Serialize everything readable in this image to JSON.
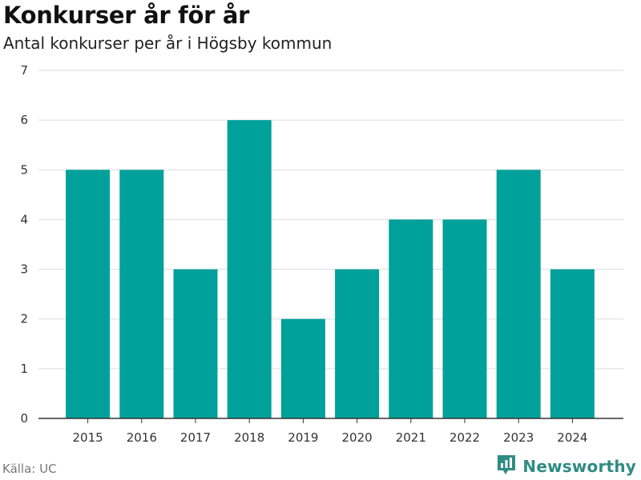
{
  "header": {
    "title": "Konkurser år för år",
    "subtitle": "Antal konkurser per år i Högsby kommun"
  },
  "footer": {
    "source": "Källa: UC",
    "brand": "Newsworthy",
    "brand_icon": "bar-chart-logo-icon"
  },
  "colors": {
    "bar": "#00a19a",
    "grid": "#dddddd",
    "axis": "#333333",
    "brand": "#2f8c84"
  },
  "chart_data": {
    "type": "bar",
    "title": "Konkurser år för år",
    "subtitle": "Antal konkurser per år i Högsby kommun",
    "xlabel": "",
    "ylabel": "",
    "categories": [
      "2015",
      "2016",
      "2017",
      "2018",
      "2019",
      "2020",
      "2021",
      "2022",
      "2023",
      "2024"
    ],
    "values": [
      5,
      5,
      3,
      6,
      2,
      3,
      4,
      4,
      5,
      3
    ],
    "ylim": [
      0,
      7
    ],
    "yticks": [
      "0",
      "1",
      "2",
      "3",
      "4",
      "5",
      "6",
      "7"
    ],
    "grid": true,
    "legend": "none"
  }
}
